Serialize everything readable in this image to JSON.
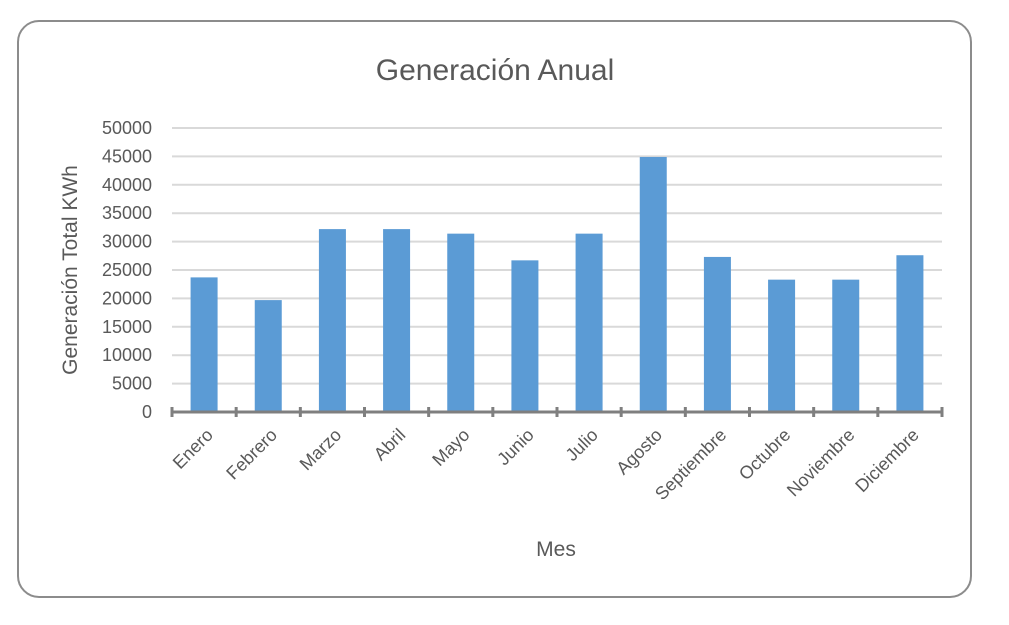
{
  "chart_data": {
    "type": "bar",
    "title": "Generación Anual",
    "xlabel": "Mes",
    "ylabel": "Generación Total KWh",
    "categories": [
      "Enero",
      "Febrero",
      "Marzo",
      "Abril",
      "Mayo",
      "Junio",
      "Julio",
      "Agosto",
      "Septiembre",
      "Octubre",
      "Noviembre",
      "Diciembre"
    ],
    "values": [
      23700,
      19700,
      32200,
      32200,
      31400,
      26700,
      31400,
      44900,
      27300,
      23300,
      23300,
      27600
    ],
    "ylim": [
      0,
      50000
    ],
    "yticks": [
      "50000",
      "45000",
      "40000",
      "35000",
      "30000",
      "25000",
      "20000",
      "15000",
      "10000",
      "5000",
      "0"
    ],
    "ytick_values": [
      50000,
      45000,
      40000,
      35000,
      30000,
      25000,
      20000,
      15000,
      10000,
      5000,
      0
    ],
    "grid": true,
    "legend": "none",
    "bar_color": "#5b9bd5",
    "grid_color": "#d9d9d9",
    "axis_color": "#7f7f7f",
    "text_color": "#595959"
  }
}
